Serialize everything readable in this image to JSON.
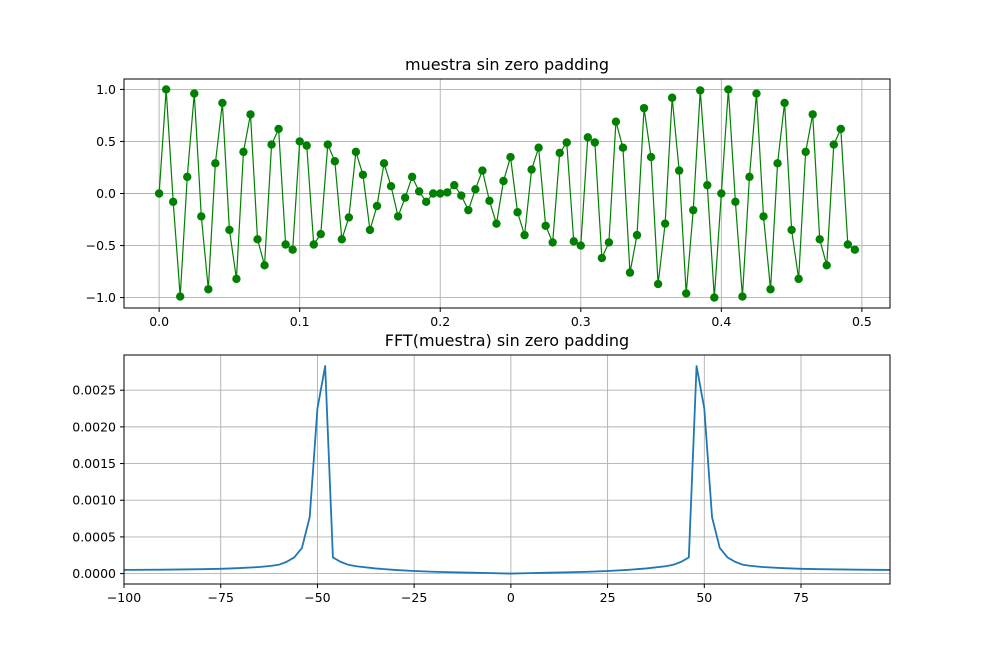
{
  "chart_data": [
    {
      "type": "line",
      "title": "muestra sin zero padding",
      "xlabel": "",
      "ylabel": "",
      "xlim": [
        -0.025,
        0.52
      ],
      "ylim": [
        -1.1,
        1.1
      ],
      "xticks": [
        0.0,
        0.1,
        0.2,
        0.3,
        0.4,
        0.5
      ],
      "xtick_labels": [
        "0.0",
        "0.1",
        "0.2",
        "0.3",
        "0.4",
        "0.5"
      ],
      "yticks": [
        -1.0,
        -0.5,
        0.0,
        0.5,
        1.0
      ],
      "ytick_labels": [
        "−1.0",
        "−0.5",
        "0.0",
        "0.5",
        "1.0"
      ],
      "grid": true,
      "marker": "circle",
      "color": "#008000",
      "series": [
        {
          "x": [
            0.0,
            0.005,
            0.01,
            0.015,
            0.02,
            0.025,
            0.03,
            0.035,
            0.04,
            0.045,
            0.05,
            0.055,
            0.06,
            0.065,
            0.07,
            0.075,
            0.08,
            0.085,
            0.09,
            0.095,
            0.1,
            0.105,
            0.11,
            0.115,
            0.12,
            0.125,
            0.13,
            0.135,
            0.14,
            0.145,
            0.15,
            0.155,
            0.16,
            0.165,
            0.17,
            0.175,
            0.18,
            0.185,
            0.19,
            0.195,
            0.2,
            0.205,
            0.21,
            0.215,
            0.22,
            0.225,
            0.23,
            0.235,
            0.24,
            0.245,
            0.25,
            0.255,
            0.26,
            0.265,
            0.27,
            0.275,
            0.28,
            0.285,
            0.29,
            0.295,
            0.3,
            0.305,
            0.31,
            0.315,
            0.32,
            0.325,
            0.33,
            0.335,
            0.34,
            0.345,
            0.35,
            0.355,
            0.36,
            0.365,
            0.37,
            0.375,
            0.38,
            0.385,
            0.39,
            0.395,
            0.4,
            0.405,
            0.41,
            0.415,
            0.42,
            0.425,
            0.43,
            0.435,
            0.44,
            0.445,
            0.45,
            0.455,
            0.46,
            0.465,
            0.47,
            0.475,
            0.48,
            0.485,
            0.49,
            0.495
          ],
          "y": [
            0.0,
            1.0,
            -0.08,
            -0.99,
            0.16,
            0.96,
            -0.22,
            -0.92,
            0.29,
            0.87,
            -0.35,
            -0.82,
            0.4,
            0.76,
            -0.44,
            -0.69,
            0.47,
            0.62,
            -0.49,
            -0.54,
            0.5,
            0.46,
            -0.49,
            -0.39,
            0.47,
            0.31,
            -0.44,
            -0.23,
            0.4,
            0.18,
            -0.35,
            -0.12,
            0.29,
            0.07,
            -0.22,
            -0.04,
            0.16,
            0.02,
            -0.08,
            0.0,
            0.0,
            0.01,
            0.08,
            -0.02,
            -0.16,
            0.04,
            0.22,
            -0.07,
            -0.29,
            0.12,
            0.35,
            -0.18,
            -0.4,
            0.23,
            0.44,
            -0.31,
            -0.47,
            0.39,
            0.49,
            -0.46,
            -0.5,
            0.54,
            0.49,
            -0.62,
            -0.47,
            0.69,
            0.44,
            -0.76,
            -0.4,
            0.82,
            0.35,
            -0.87,
            -0.29,
            0.92,
            0.22,
            -0.96,
            -0.16,
            0.99,
            0.08,
            -1.0,
            0.0,
            1.0,
            -0.08,
            -0.99,
            0.16,
            0.96,
            -0.22,
            -0.92,
            0.29,
            0.87,
            -0.35,
            -0.82,
            0.4,
            0.76,
            -0.44,
            -0.69,
            0.47,
            0.62,
            -0.49,
            -0.54
          ]
        }
      ]
    },
    {
      "type": "line",
      "title": "FFT(muestra) sin zero padding",
      "xlabel": "",
      "ylabel": "",
      "xlim": [
        -100,
        98
      ],
      "ylim": [
        -0.000142,
        0.00298
      ],
      "xticks": [
        -100,
        -75,
        -50,
        -25,
        0,
        25,
        50,
        75
      ],
      "xtick_labels": [
        "−100",
        "−75",
        "−50",
        "−25",
        "0",
        "25",
        "50",
        "75"
      ],
      "yticks": [
        0.0,
        0.0005,
        0.001,
        0.0015,
        0.002,
        0.0025
      ],
      "ytick_labels": [
        "0.0000",
        "0.0005",
        "0.0010",
        "0.0015",
        "0.0020",
        "0.0025"
      ],
      "grid": true,
      "color": "#1f77b4",
      "series": [
        {
          "x": [
            -100,
            -90,
            -80,
            -75,
            -70,
            -65,
            -62,
            -60,
            -58,
            -56,
            -54,
            -52,
            -50,
            -48,
            -46,
            -44,
            -42,
            -40,
            -35,
            -30,
            -25,
            -20,
            -15,
            -10,
            -5,
            0,
            5,
            10,
            15,
            20,
            25,
            30,
            35,
            40,
            42,
            44,
            46,
            48,
            50,
            52,
            54,
            56,
            58,
            60,
            62,
            65,
            70,
            75,
            80,
            90,
            98
          ],
          "y": [
            5e-05,
            5.3e-05,
            6e-05,
            6.5e-05,
            7.5e-05,
            9e-05,
            0.000105,
            0.00012,
            0.00016,
            0.00022,
            0.00035,
            0.00077,
            0.00225,
            0.00283,
            0.00022,
            0.00016,
            0.00012,
            0.0001,
            7e-05,
            5e-05,
            3.5e-05,
            2.5e-05,
            1.8e-05,
            1.2e-05,
            6e-06,
            0.0,
            6e-06,
            1.2e-05,
            1.8e-05,
            2.5e-05,
            3.5e-05,
            5e-05,
            7e-05,
            0.0001,
            0.00012,
            0.00016,
            0.00022,
            0.00283,
            0.00225,
            0.00077,
            0.00035,
            0.00022,
            0.00016,
            0.00012,
            0.000105,
            9e-05,
            7.5e-05,
            6.5e-05,
            6e-05,
            5.3e-05,
            5e-05
          ]
        }
      ]
    }
  ]
}
